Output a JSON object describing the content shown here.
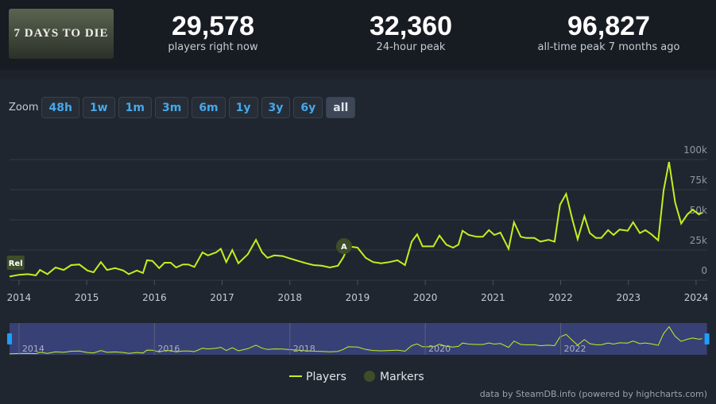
{
  "header": {
    "logo_text": "7 DAYS TO DIE",
    "stats": [
      {
        "value": "29,578",
        "label": "players right now"
      },
      {
        "value": "32,360",
        "label": "24-hour peak"
      },
      {
        "value": "96,827",
        "label": "all-time peak 7 months ago"
      }
    ]
  },
  "zoom": {
    "label": "Zoom",
    "buttons": [
      "48h",
      "1w",
      "1m",
      "3m",
      "6m",
      "1y",
      "3y",
      "6y",
      "all"
    ],
    "active": "all"
  },
  "chart_data": {
    "type": "line",
    "x": [
      2013.86,
      2014.0,
      2014.13,
      2014.25,
      2014.31,
      2014.42,
      2014.54,
      2014.66,
      2014.77,
      2014.89,
      2015.01,
      2015.1,
      2015.21,
      2015.3,
      2015.42,
      2015.54,
      2015.62,
      2015.74,
      2015.83,
      2015.89,
      2015.97,
      2016.07,
      2016.15,
      2016.24,
      2016.32,
      2016.42,
      2016.5,
      2016.59,
      2016.71,
      2016.79,
      2016.91,
      2016.98,
      2017.06,
      2017.15,
      2017.24,
      2017.38,
      2017.5,
      2017.59,
      2017.67,
      2017.77,
      2017.89,
      2018.0,
      2018.12,
      2018.24,
      2018.35,
      2018.47,
      2018.59,
      2018.71,
      2018.79,
      2018.86,
      2019.0,
      2019.12,
      2019.23,
      2019.35,
      2019.47,
      2019.59,
      2019.7,
      2019.8,
      2019.88,
      2019.96,
      2020.12,
      2020.21,
      2020.31,
      2020.41,
      2020.49,
      2020.55,
      2020.64,
      2020.76,
      2020.85,
      2020.94,
      2021.02,
      2021.11,
      2021.23,
      2021.31,
      2021.41,
      2021.49,
      2021.61,
      2021.7,
      2021.82,
      2021.91,
      2021.99,
      2022.08,
      2022.17,
      2022.25,
      2022.35,
      2022.43,
      2022.52,
      2022.6,
      2022.7,
      2022.78,
      2022.87,
      2022.99,
      2023.07,
      2023.17,
      2023.25,
      2023.34,
      2023.44,
      2023.52,
      2023.6,
      2023.69,
      2023.78,
      2023.87,
      2023.95,
      2024.04,
      2024.09
    ],
    "series": [
      {
        "name": "Players",
        "color": "#c4ef1f",
        "values": [
          3000,
          4500,
          5000,
          4000,
          8500,
          5000,
          10500,
          8500,
          12500,
          13000,
          8000,
          6500,
          15000,
          8500,
          10000,
          8000,
          5000,
          8000,
          6000,
          16500,
          16000,
          10000,
          14500,
          14500,
          10500,
          13000,
          13000,
          11000,
          23000,
          20500,
          23000,
          26000,
          15000,
          25000,
          14000,
          21500,
          33500,
          23000,
          18500,
          20500,
          20000,
          18000,
          16000,
          14000,
          12500,
          12000,
          10500,
          12000,
          19000,
          28000,
          27000,
          18500,
          15000,
          14000,
          15000,
          16500,
          12500,
          32000,
          38000,
          28000,
          28000,
          37000,
          29500,
          27000,
          29500,
          41000,
          37500,
          36000,
          36000,
          41500,
          37500,
          39500,
          26000,
          48000,
          36000,
          35000,
          35000,
          32000,
          33500,
          32000,
          62500,
          71500,
          51000,
          34000,
          53000,
          39000,
          35000,
          35000,
          41500,
          37500,
          42000,
          41000,
          48000,
          39000,
          41500,
          38000,
          33000,
          74500,
          98000,
          64500,
          47000,
          54500,
          58500,
          54500,
          56000
        ]
      }
    ],
    "markers": {
      "name": "Markers",
      "color": "#3f4d2a",
      "items": [
        {
          "label": "Rel",
          "x": 2013.95
        },
        {
          "label": "A",
          "x": 2018.8
        }
      ]
    },
    "xlim": [
      2013.86,
      2024.16
    ],
    "xticks": [
      2014,
      2015,
      2016,
      2017,
      2018,
      2019,
      2020,
      2021,
      2022,
      2023,
      2024
    ],
    "ylim": [
      0,
      100000
    ],
    "yticks": [
      {
        "value": 0,
        "label": "0"
      },
      {
        "value": 25000,
        "label": "25k"
      },
      {
        "value": 50000,
        "label": "50k"
      },
      {
        "value": 75000,
        "label": "75k"
      },
      {
        "value": 100000,
        "label": "100k"
      }
    ],
    "navigator_xticks": [
      2014,
      2016,
      2018,
      2020,
      2022
    ],
    "grid": true,
    "legend": "bottom",
    "credit": "data by SteamDB.info (powered by highcharts.com)"
  }
}
